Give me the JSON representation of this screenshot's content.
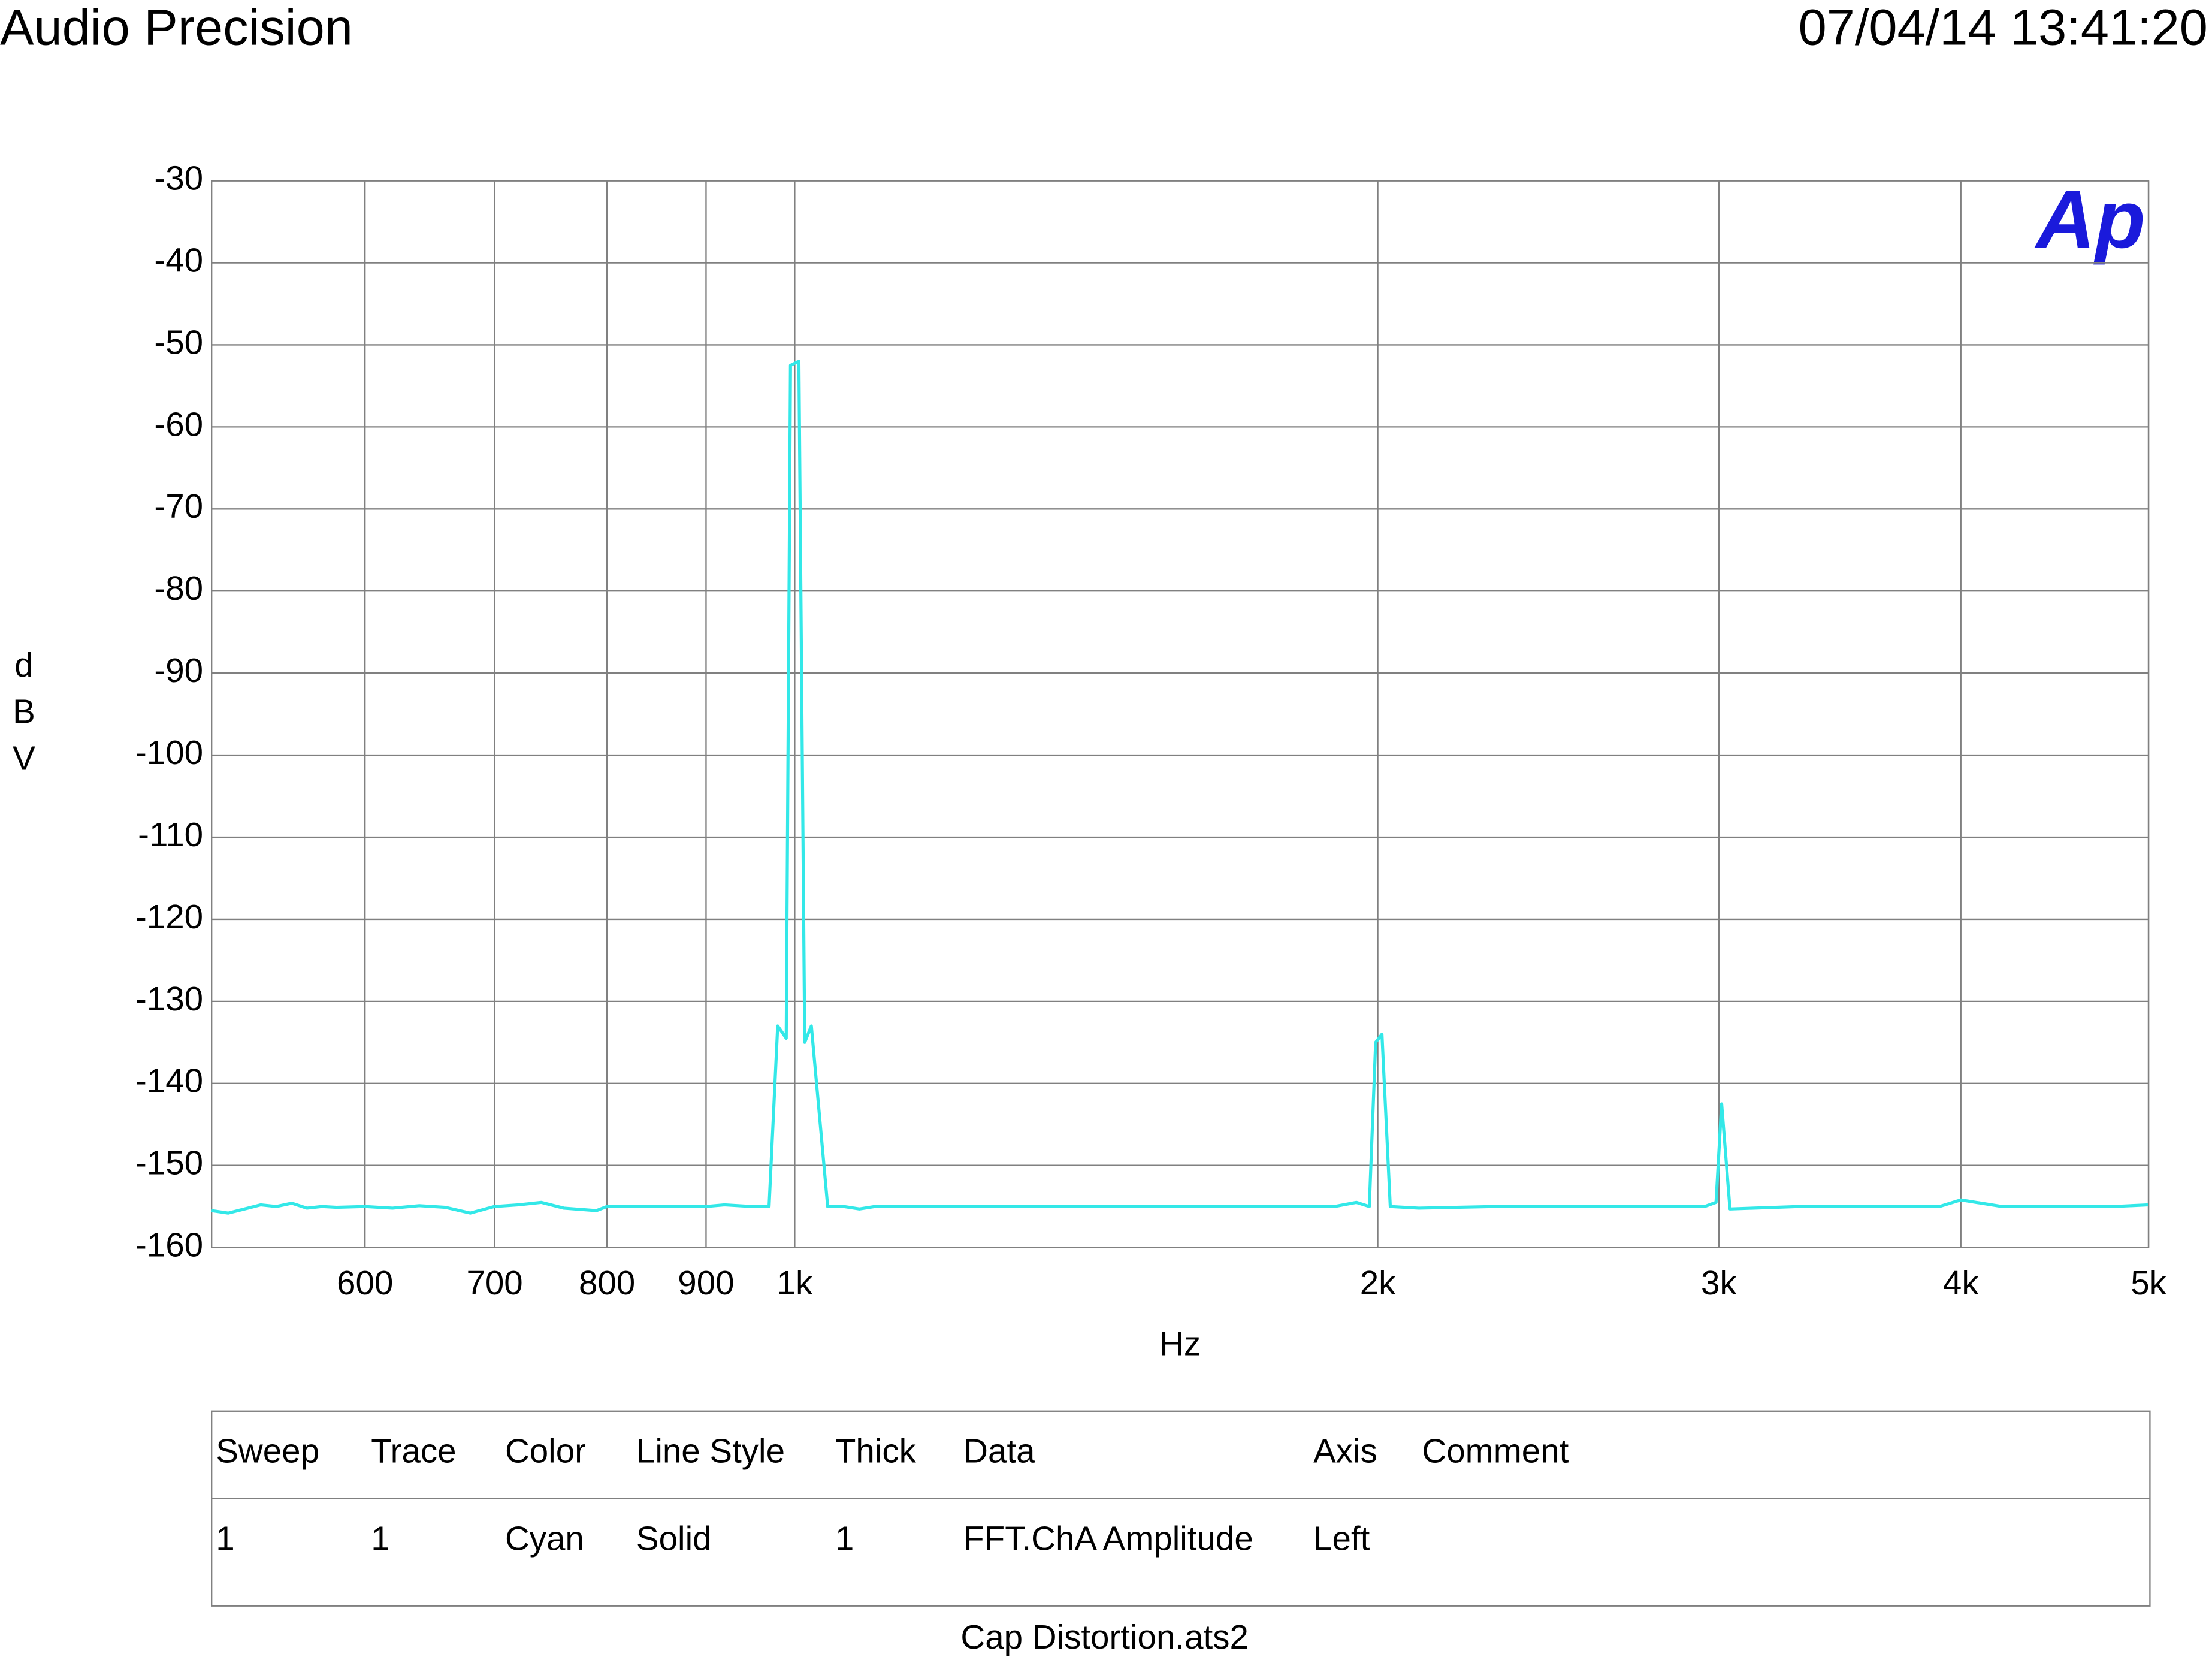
{
  "header": {
    "title": "Audio Precision",
    "date": "07/04/14 13:41:20"
  },
  "logo": "Ap",
  "chart_data": {
    "type": "line",
    "x_label": "Hz",
    "y_label": "dBV",
    "xscale": "log",
    "grid": true,
    "xlim": [
      500,
      5000
    ],
    "ylim": [
      -160,
      -30
    ],
    "xticks": [
      {
        "value": 600,
        "label": "600"
      },
      {
        "value": 700,
        "label": "700"
      },
      {
        "value": 800,
        "label": "800"
      },
      {
        "value": 900,
        "label": "900"
      },
      {
        "value": 1000,
        "label": "1k"
      },
      {
        "value": 2000,
        "label": "2k"
      },
      {
        "value": 3000,
        "label": "3k"
      },
      {
        "value": 4000,
        "label": "4k"
      },
      {
        "value": 5000,
        "label": "5k"
      }
    ],
    "yticks": [
      -30,
      -40,
      -50,
      -60,
      -70,
      -80,
      -90,
      -100,
      -110,
      -120,
      -130,
      -140,
      -150,
      -160
    ],
    "x": [
      500,
      510,
      520,
      530,
      540,
      550,
      560,
      570,
      580,
      600,
      620,
      640,
      660,
      680,
      700,
      720,
      740,
      760,
      790,
      800,
      850,
      900,
      920,
      950,
      970,
      980,
      990,
      995,
      1005,
      1012,
      1020,
      1040,
      1060,
      1080,
      1100,
      1200,
      1300,
      1400,
      1500,
      1700,
      1900,
      1950,
      1980,
      1995,
      2010,
      2030,
      2100,
      2300,
      2500,
      2700,
      2950,
      2990,
      3010,
      3040,
      3300,
      3600,
      3900,
      4000,
      4200,
      4500,
      4800,
      5000
    ],
    "series": [
      {
        "name": "FFT.ChA Amplitude",
        "color": "#33e8e8",
        "values": [
          -155.5,
          -155.8,
          -155.3,
          -154.8,
          -155,
          -154.6,
          -155.2,
          -155,
          -155.1,
          -155,
          -155.2,
          -154.9,
          -155.1,
          -155.8,
          -155,
          -154.8,
          -154.5,
          -155.2,
          -155.5,
          -155,
          -155,
          -155,
          -154.8,
          -155,
          -155,
          -133,
          -134.5,
          -52.5,
          -52,
          -135,
          -133,
          -155,
          -155,
          -155.3,
          -155,
          -155,
          -155,
          -155,
          -155,
          -155,
          -155,
          -154.5,
          -155,
          -135,
          -134,
          -155,
          -155.2,
          -155,
          -155,
          -155,
          -155,
          -154.5,
          -142.5,
          -155.3,
          -155,
          -155,
          -155,
          -154.2,
          -155,
          -155,
          -155,
          -154.8
        ]
      }
    ]
  },
  "table": {
    "headers": [
      "Sweep",
      "Trace",
      "Color",
      "Line Style",
      "Thick",
      "Data",
      "Axis",
      "Comment"
    ],
    "rows": [
      [
        "1",
        "1",
        "Cyan",
        "Solid",
        "1",
        "FFT.ChA Amplitude",
        "Left"
      ]
    ]
  },
  "footer": {
    "file": "Cap Distortion.ats2"
  }
}
